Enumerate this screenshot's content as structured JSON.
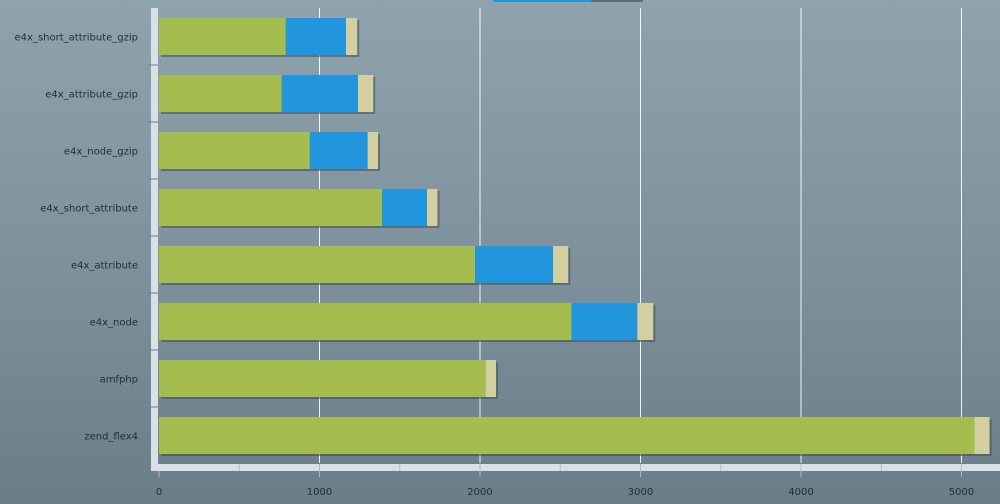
{
  "chart_data": {
    "type": "bar",
    "orientation": "horizontal",
    "stacked": true,
    "title": "",
    "xlabel": "",
    "ylabel": "",
    "xlim": [
      0,
      5200
    ],
    "xticks": [
      0,
      1000,
      2000,
      3000,
      4000,
      5000
    ],
    "grid": true,
    "legend": "top (partially cut off)",
    "categories": [
      "e4x_short_attribute_gzip",
      "e4x_attribute_gzip",
      "e4x_node_gzip",
      "e4x_short_attribute",
      "e4x_attribute",
      "e4x_node",
      "amfphp",
      "zend_flex4"
    ],
    "series": [
      {
        "color": "#a5bd4f",
        "values": [
          790,
          765,
          940,
          1390,
          1970,
          2570,
          2035,
          5080
        ]
      },
      {
        "color": "#2196de",
        "values": [
          375,
          475,
          360,
          280,
          485,
          410,
          0,
          0
        ]
      },
      {
        "color": "#d4cfa0",
        "values": [
          70,
          95,
          65,
          65,
          95,
          100,
          65,
          95
        ]
      }
    ]
  }
}
